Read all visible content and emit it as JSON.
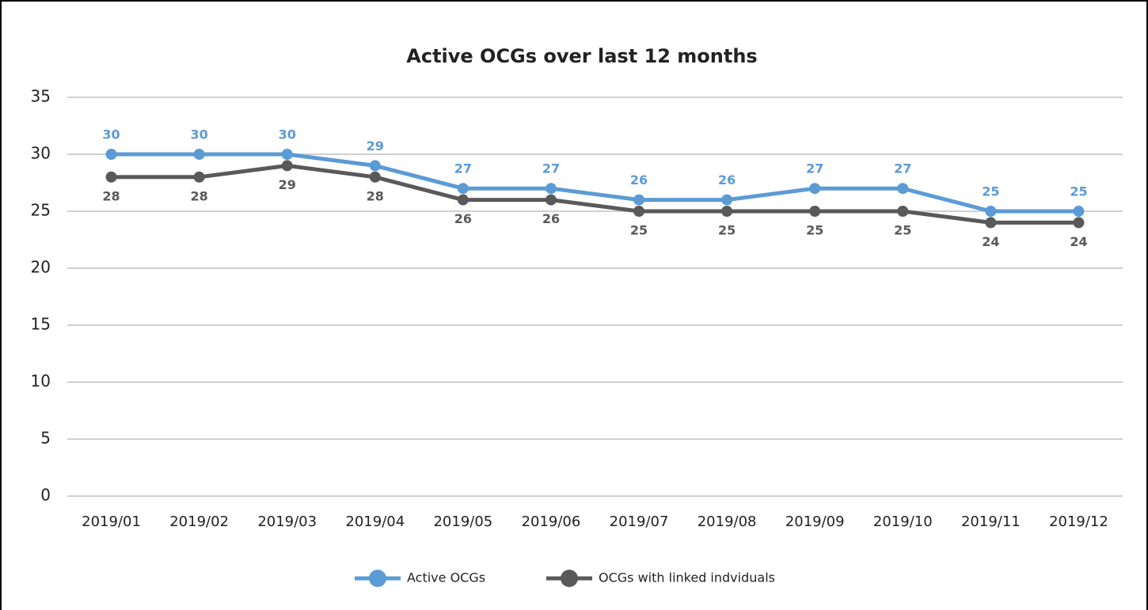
{
  "chart_data": {
    "type": "line",
    "title": "Active OCGs over last 12 months",
    "categories": [
      "2019/01",
      "2019/02",
      "2019/03",
      "2019/04",
      "2019/05",
      "2019/06",
      "2019/07",
      "2019/08",
      "2019/09",
      "2019/10",
      "2019/11",
      "2019/12"
    ],
    "series": [
      {
        "name": "Active OCGs",
        "color": "#5b9bd5",
        "values": [
          30,
          30,
          30,
          29,
          27,
          27,
          26,
          26,
          27,
          27,
          25,
          25
        ]
      },
      {
        "name": "OCGs with linked indviduals",
        "color": "#595959",
        "values": [
          28,
          28,
          29,
          28,
          26,
          26,
          25,
          25,
          25,
          25,
          24,
          24
        ]
      }
    ],
    "ylim": [
      0,
      35
    ],
    "yticks": [
      0,
      5,
      10,
      15,
      20,
      25,
      30,
      35
    ],
    "grid": true,
    "legend": "bottom"
  }
}
